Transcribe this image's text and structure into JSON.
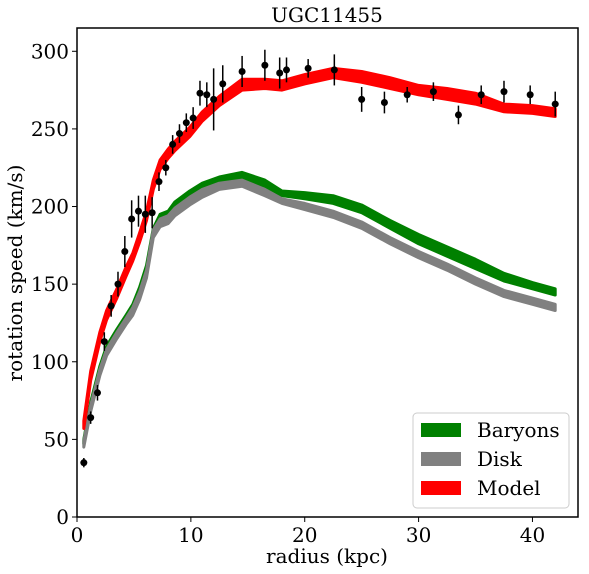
{
  "chart_data": {
    "type": "line",
    "title": "UGC11455",
    "xlabel": "radius (kpc)",
    "ylabel": "rotation speed (km/s)",
    "xlim": [
      0,
      44
    ],
    "ylim": [
      0,
      315
    ],
    "xticks": [
      "0",
      "10",
      "20",
      "30",
      "40"
    ],
    "xtick_values": [
      0,
      10,
      20,
      30,
      40
    ],
    "yticks": [
      "0",
      "50",
      "100",
      "150",
      "200",
      "250",
      "300"
    ],
    "ytick_values": [
      0,
      50,
      100,
      150,
      200,
      250,
      300
    ],
    "grid": false,
    "legend_position": "lower-right",
    "colors": {
      "baryons": "#008000",
      "disk": "#808080",
      "model": "#ff0000",
      "data": "#000000"
    },
    "series": [
      {
        "name": "Baryons",
        "type": "band",
        "color": "#008000",
        "x": [
          0.6,
          1.2,
          2.0,
          2.6,
          3.5,
          4.3,
          4.9,
          5.5,
          6.1,
          6.7,
          7.3,
          8.0,
          8.6,
          9.9,
          11.0,
          12.5,
          14.5,
          16.5,
          18.0,
          20.0,
          22.5,
          25.0,
          27.5,
          30.0,
          32.5,
          35.0,
          37.5,
          40.0,
          42.0
        ],
        "lower": [
          47,
          70,
          93,
          106,
          117,
          126,
          132,
          143,
          157,
          181,
          190,
          192,
          198,
          205,
          210,
          215,
          218,
          213,
          207,
          205,
          202,
          196,
          186,
          176,
          168,
          160,
          152,
          147,
          143
        ],
        "upper": [
          50,
          74,
          97,
          110,
          121,
          130,
          137,
          148,
          162,
          186,
          195,
          197,
          203,
          210,
          215,
          219,
          222,
          217,
          210,
          209,
          207,
          201,
          191,
          182,
          174,
          166,
          157,
          151,
          147
        ]
      },
      {
        "name": "Disk",
        "type": "band",
        "color": "#808080",
        "x": [
          0.6,
          1.2,
          2.0,
          2.6,
          3.5,
          4.3,
          4.9,
          5.5,
          6.1,
          6.7,
          7.3,
          8.0,
          8.6,
          9.9,
          11.0,
          12.5,
          14.5,
          16.5,
          18.0,
          20.0,
          22.5,
          25.0,
          27.5,
          30.0,
          32.5,
          35.0,
          37.5,
          40.0,
          42.0
        ],
        "lower": [
          45,
          68,
          91,
          104,
          115,
          124,
          130,
          140,
          154,
          180,
          187,
          189,
          194,
          201,
          206,
          211,
          213,
          207,
          202,
          198,
          193,
          186,
          176,
          167,
          159,
          150,
          142,
          137,
          133
        ],
        "upper": [
          49,
          72,
          95,
          108,
          119,
          128,
          135,
          145,
          159,
          185,
          192,
          194,
          199,
          206,
          211,
          215,
          217,
          211,
          205,
          202,
          197,
          190,
          180,
          171,
          163,
          154,
          146,
          141,
          137
        ]
      },
      {
        "name": "Model",
        "type": "band",
        "color": "#ff0000",
        "x": [
          0.6,
          1.2,
          2.0,
          2.6,
          3.5,
          4.3,
          4.9,
          5.5,
          6.1,
          6.7,
          7.3,
          8.0,
          8.6,
          9.9,
          11.0,
          12.5,
          14.5,
          16.5,
          18.0,
          20.0,
          22.5,
          25.0,
          27.5,
          30.0,
          32.5,
          35.0,
          37.5,
          40.0,
          42.0
        ],
        "lower": [
          57,
          88,
          113,
          127,
          141,
          155,
          165,
          177,
          191,
          211,
          224,
          231,
          236,
          245,
          255,
          265,
          275,
          276,
          275,
          279,
          283,
          280,
          276,
          272,
          269,
          266,
          261,
          260,
          258
        ],
        "upper": [
          62,
          94,
          119,
          133,
          147,
          161,
          170,
          183,
          197,
          217,
          230,
          237,
          242,
          251,
          261,
          271,
          282,
          282,
          281,
          285,
          289,
          287,
          283,
          278,
          276,
          273,
          266,
          265,
          263
        ]
      },
      {
        "name": "data",
        "type": "errorbar",
        "color": "#000000",
        "x": [
          0.6,
          1.2,
          1.8,
          2.4,
          3.0,
          3.6,
          4.2,
          4.8,
          5.4,
          6.0,
          6.6,
          7.2,
          7.8,
          8.4,
          9.0,
          9.6,
          10.2,
          10.8,
          11.4,
          12.0,
          12.8,
          14.5,
          16.5,
          17.8,
          18.4,
          20.3,
          22.6,
          25.0,
          27.0,
          29.0,
          31.3,
          33.5,
          35.5,
          37.5,
          39.8,
          42.0
        ],
        "y": [
          35,
          64,
          80,
          113,
          136,
          150,
          171,
          192,
          197,
          195,
          196,
          216,
          225,
          240,
          247,
          254,
          257,
          273,
          272,
          269,
          279,
          287,
          291,
          286,
          288,
          289,
          288,
          269,
          267,
          272,
          274,
          259,
          272,
          274,
          272,
          266
        ],
        "err": [
          3,
          4,
          5,
          6,
          7,
          8,
          10,
          12,
          10,
          12,
          10,
          6,
          5,
          6,
          6,
          6,
          7,
          8,
          8,
          20,
          12,
          10,
          10,
          10,
          8,
          6,
          10,
          8,
          7,
          5,
          6,
          6,
          6,
          7,
          6,
          8
        ]
      }
    ]
  }
}
